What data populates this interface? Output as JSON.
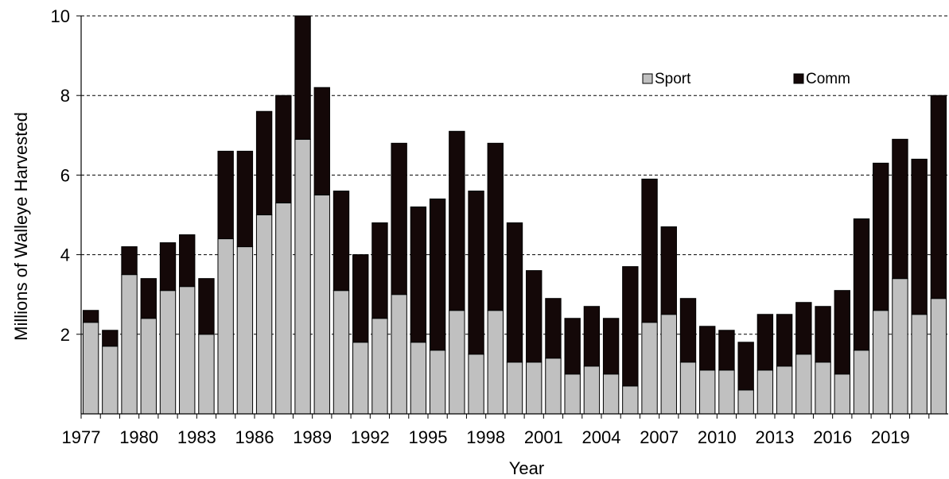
{
  "chart_data": {
    "type": "bar",
    "stacked": true,
    "title": "",
    "xlabel": "Year",
    "ylabel": "Millions of Walleye Harvested",
    "ylim": [
      0,
      10
    ],
    "yticks": [
      2,
      4,
      6,
      8,
      10
    ],
    "xtick_labels": [
      "1977",
      "1980",
      "1983",
      "1986",
      "1989",
      "1992",
      "1995",
      "1998",
      "2001",
      "2004",
      "2007",
      "2010",
      "2013",
      "2016",
      "2019"
    ],
    "grid": "horizontal dashed",
    "legend_position": "top-right",
    "categories": [
      "1977",
      "1978",
      "1979",
      "1980",
      "1981",
      "1982",
      "1983",
      "1984",
      "1985",
      "1986",
      "1987",
      "1988",
      "1989",
      "1990",
      "1991",
      "1992",
      "1993",
      "1994",
      "1995",
      "1996",
      "1997",
      "1998",
      "1999",
      "2000",
      "2001",
      "2002",
      "2003",
      "2004",
      "2005",
      "2006",
      "2007",
      "2008",
      "2009",
      "2010",
      "2011",
      "2012",
      "2013",
      "2014",
      "2015",
      "2016",
      "2017",
      "2018",
      "2019",
      "2020",
      "2021"
    ],
    "series": [
      {
        "name": "Sport",
        "color": "#c0c0c0",
        "values": [
          2.3,
          1.7,
          3.5,
          2.4,
          3.1,
          3.2,
          2.0,
          4.4,
          4.2,
          5.0,
          5.3,
          6.9,
          5.5,
          3.1,
          1.8,
          2.4,
          3.0,
          1.8,
          1.6,
          2.6,
          1.5,
          2.6,
          1.3,
          1.3,
          1.4,
          1.0,
          1.2,
          1.0,
          0.7,
          2.3,
          2.5,
          1.3,
          1.1,
          1.1,
          0.6,
          1.1,
          1.2,
          1.5,
          1.3,
          1.0,
          1.6,
          2.6,
          3.4,
          2.5,
          2.9
        ]
      },
      {
        "name": "Comm",
        "color": "#140808",
        "values": [
          0.3,
          0.4,
          0.7,
          1.0,
          1.2,
          1.3,
          1.4,
          2.2,
          2.4,
          2.6,
          2.7,
          3.1,
          2.7,
          2.5,
          2.2,
          2.4,
          3.8,
          3.4,
          3.8,
          4.5,
          4.1,
          4.2,
          3.5,
          2.3,
          1.5,
          1.4,
          1.5,
          1.4,
          3.0,
          3.6,
          2.2,
          1.6,
          1.1,
          1.0,
          1.2,
          1.4,
          1.3,
          1.3,
          1.4,
          2.1,
          3.3,
          3.7,
          3.5,
          3.9,
          5.1
        ]
      }
    ]
  }
}
